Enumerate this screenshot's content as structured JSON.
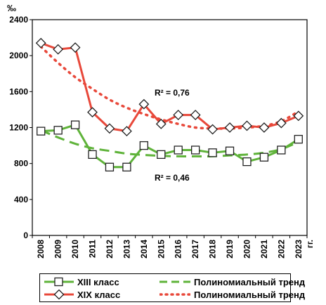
{
  "chart_data": {
    "type": "line",
    "unit_label": "‰",
    "x_suffix": "гг.",
    "x": [
      "2008",
      "2009",
      "2010",
      "2011",
      "2012",
      "2013",
      "2014",
      "2015",
      "2016",
      "2017",
      "2018",
      "2019",
      "2020",
      "2021",
      "2022",
      "2023"
    ],
    "ylim": [
      0,
      2400
    ],
    "yticks": [
      0,
      400,
      800,
      1200,
      1600,
      2000,
      2400
    ],
    "grid": false,
    "legend_position": "bottom",
    "series": [
      {
        "name": "XIII класс",
        "color": "#5fb33a",
        "marker": "square",
        "values": [
          1160,
          1170,
          1230,
          900,
          760,
          760,
          1000,
          900,
          950,
          950,
          920,
          940,
          820,
          870,
          950,
          1070
        ]
      },
      {
        "name": "XIX класс",
        "color": "#e8483a",
        "marker": "diamond",
        "values": [
          2140,
          2070,
          2090,
          1370,
          1190,
          1160,
          1460,
          1240,
          1340,
          1340,
          1180,
          1200,
          1220,
          1200,
          1250,
          1330
        ]
      }
    ],
    "trends": [
      {
        "name": "Полиномиальный тренд",
        "color": "#5fb33a",
        "style": "dashed",
        "values": [
          1170,
          1090,
          1020,
          970,
          940,
          910,
          895,
          885,
          880,
          880,
          880,
          890,
          900,
          920,
          960,
          1040
        ],
        "annotation": "R² = 0,46"
      },
      {
        "name": "Полиномиальный тренд",
        "color": "#e8483a",
        "style": "dotted",
        "values": [
          2100,
          1920,
          1760,
          1630,
          1510,
          1420,
          1350,
          1290,
          1240,
          1200,
          1190,
          1190,
          1200,
          1220,
          1270,
          1380
        ],
        "annotation": "R² = 0,76"
      }
    ]
  }
}
